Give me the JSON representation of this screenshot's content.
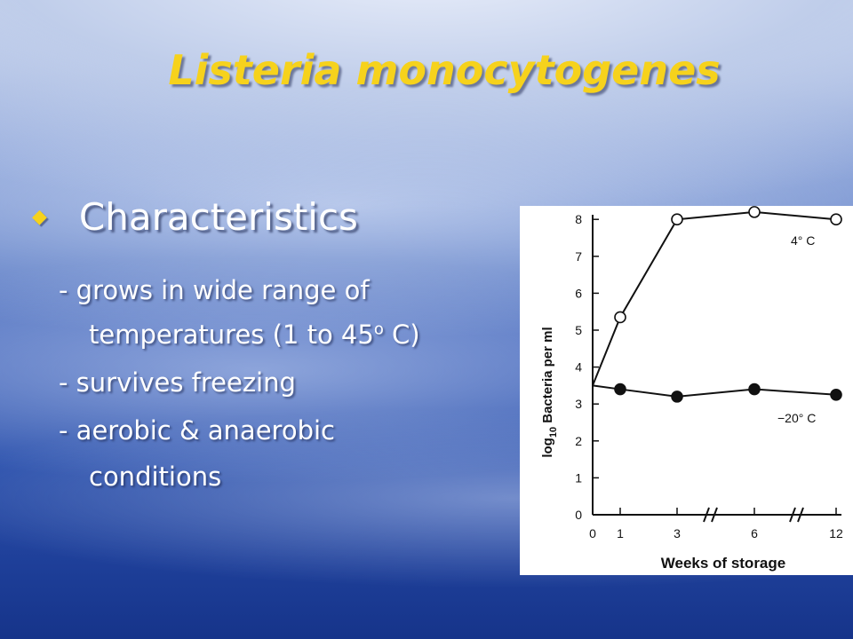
{
  "slide": {
    "title": "Listeria monocytogenes",
    "heading": "Characteristics",
    "bullet_icon": "diamond-bullet",
    "lines": {
      "l1": "-  grows in wide range of",
      "l2a": "temperatures  (1 to 45",
      "l2sup": "o",
      "l2b": " C)",
      "l3": "-  survives freezing",
      "l4": "-  aerobic & anaerobic",
      "l5": "conditions"
    },
    "colors": {
      "title": "#f6d21c",
      "text": "#ffffff"
    }
  },
  "chart_data": {
    "type": "line",
    "xlabel": "Weeks of storage",
    "ylabel_parts": {
      "pre": "log",
      "sub": "10",
      "post": " Bacteria per ml"
    },
    "x_ticks": [
      "0",
      "1",
      "3",
      "6",
      "12"
    ],
    "y_ticks": [
      "0",
      "1",
      "2",
      "3",
      "4",
      "5",
      "6",
      "7",
      "8"
    ],
    "ylim": [
      0,
      8.3
    ],
    "axis_breaks": "between 3 and 6, and between 6 and 12",
    "series": [
      {
        "name": "4° C",
        "marker": "open-circle",
        "x": [
          "0",
          "1",
          "3",
          "6",
          "12"
        ],
        "y": [
          3.5,
          5.35,
          8.0,
          8.2,
          8.0
        ]
      },
      {
        "name": "−20° C",
        "marker": "filled-circle",
        "x": [
          "0",
          "1",
          "3",
          "6",
          "12"
        ],
        "y": [
          3.5,
          3.4,
          3.2,
          3.4,
          3.25
        ]
      }
    ],
    "grid": false
  }
}
